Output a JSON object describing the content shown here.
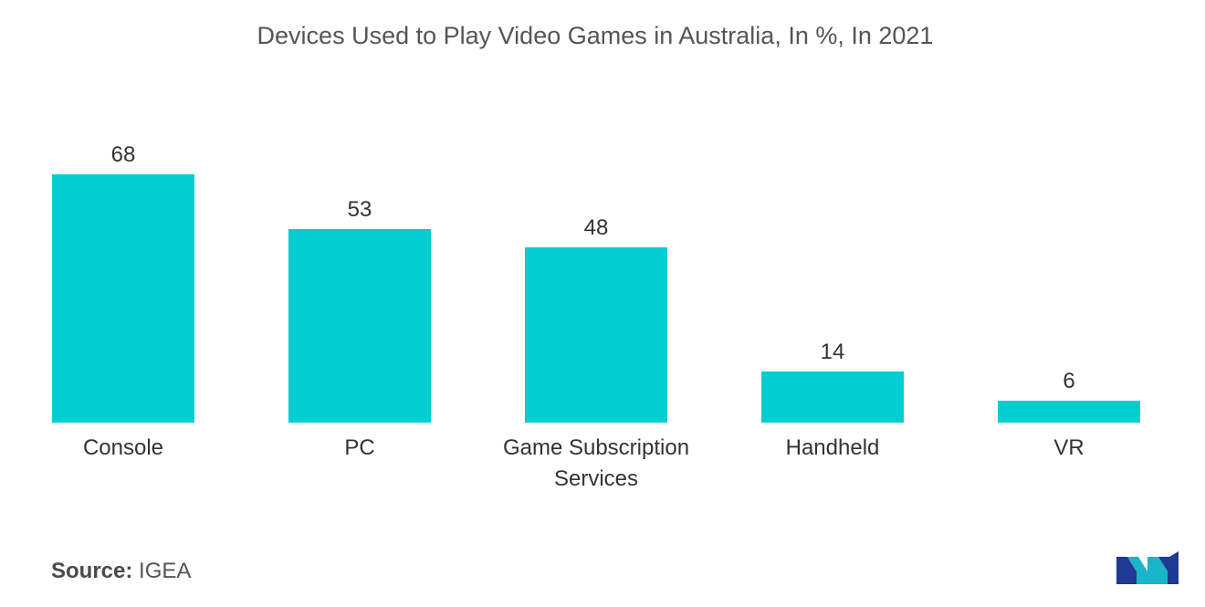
{
  "chart_data": {
    "type": "bar",
    "title": "Devices Used to Play Video Games in Australia, In %, In 2021",
    "categories": [
      "Console",
      "PC",
      "Game Subscription Services",
      "Handheld",
      "VR"
    ],
    "category_lines": [
      [
        "Console"
      ],
      [
        "PC"
      ],
      [
        "Game Subscription",
        "Services"
      ],
      [
        "Handheld"
      ],
      [
        "VR"
      ]
    ],
    "values": [
      68,
      53,
      48,
      14,
      6
    ],
    "xlabel": "",
    "ylabel": "",
    "ylim": [
      0,
      68
    ],
    "grid": false,
    "legend": "none",
    "bar_color": "#00CED1"
  },
  "source": {
    "label": "Source:",
    "value": "IGEA"
  },
  "logo": {
    "icon": "mordor-intelligence-logo",
    "colors": [
      "#1f3a93",
      "#1bb5c9"
    ]
  }
}
